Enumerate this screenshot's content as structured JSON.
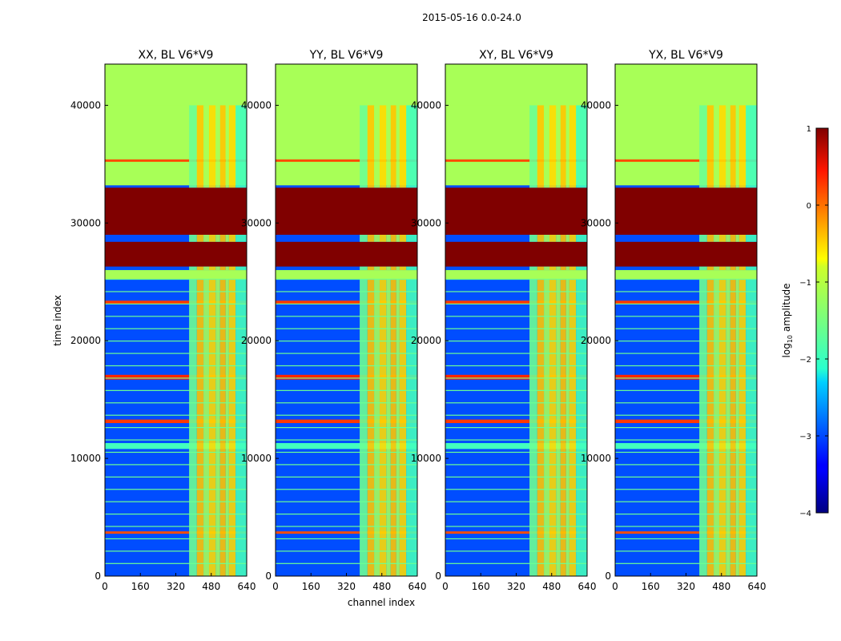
{
  "figure": {
    "suptitle": "2015-05-16 0.0-24.0",
    "xlabel": "channel index",
    "ylabel": "time index"
  },
  "chart_data": {
    "type": "heatmap",
    "colormap": "jet",
    "x_range": [
      0,
      640
    ],
    "y_range": [
      0,
      43500
    ],
    "x_ticks": [
      "0",
      "160",
      "320",
      "480",
      "640"
    ],
    "y_ticks": [
      "0",
      "10000",
      "20000",
      "30000",
      "40000"
    ],
    "panels": [
      {
        "title": "XX, BL V6*V9"
      },
      {
        "title": "YY, BL V6*V9"
      },
      {
        "title": "XY, BL V6*V9"
      },
      {
        "title": "YX, BL V6*V9"
      }
    ],
    "row_bands": [
      {
        "from": 0,
        "to": 43500,
        "level": -3.0
      },
      {
        "from": 33200,
        "to": 43500,
        "level": -1.3
      },
      {
        "from": 26300,
        "to": 28400,
        "level": 1.0
      },
      {
        "from": 29000,
        "to": 33000,
        "level": 1.0
      },
      {
        "from": 25200,
        "to": 26000,
        "level": -1.3
      },
      {
        "from": 40000,
        "to": 43300,
        "level": -1.3
      },
      {
        "from": 10800,
        "to": 11300,
        "level": -1.8
      },
      {
        "from": 13000,
        "to": 13300,
        "level": 0.1
      },
      {
        "from": 16700,
        "to": 17100,
        "level": 0.2
      },
      {
        "from": 23100,
        "to": 23400,
        "level": 0.1
      },
      {
        "from": 3600,
        "to": 3800,
        "level": 0.0
      },
      {
        "from": 35200,
        "to": 35400,
        "level": 0.0
      }
    ],
    "channel_bands": [
      {
        "from": 380,
        "to": 415,
        "level": -1.6
      },
      {
        "from": 415,
        "to": 445,
        "level": -0.6
      },
      {
        "from": 445,
        "to": 470,
        "level": -1.3
      },
      {
        "from": 470,
        "to": 500,
        "level": -0.7
      },
      {
        "from": 500,
        "to": 520,
        "level": -1.3
      },
      {
        "from": 520,
        "to": 545,
        "level": -0.6
      },
      {
        "from": 545,
        "to": 560,
        "level": -1.3
      },
      {
        "from": 560,
        "to": 590,
        "level": -0.7
      },
      {
        "from": 590,
        "to": 640,
        "level": -1.8
      }
    ],
    "colorbar": {
      "label": "log",
      "label_sub": "10",
      "label_rest": " amplitude",
      "range": [
        -4,
        1
      ],
      "ticks": [
        "1",
        "0",
        "−1",
        "−2",
        "−3",
        "−4"
      ]
    }
  }
}
